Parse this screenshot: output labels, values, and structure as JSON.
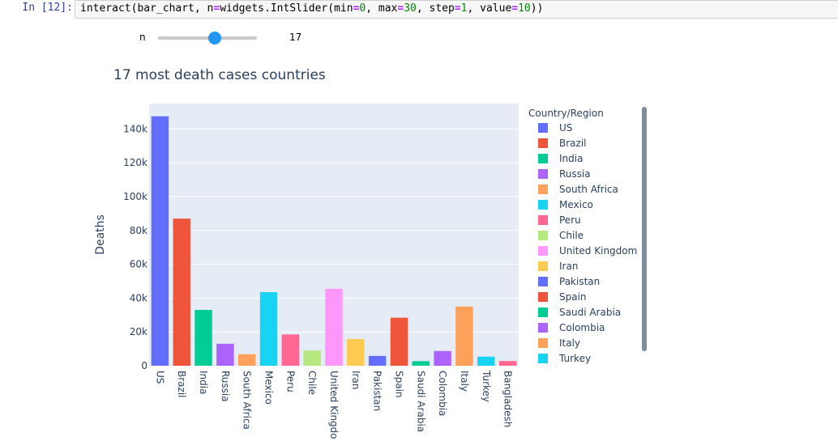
{
  "cell": {
    "prompt": "In [12]:",
    "code_parts": [
      "interact(bar_chart, n",
      "=",
      "widgets.IntSlider(min",
      "=",
      "0",
      ", max",
      "=",
      "30",
      ", step",
      "=",
      "1",
      ", value",
      "=",
      "10",
      "))"
    ]
  },
  "slider": {
    "label": "n",
    "readout": "17",
    "min": 0,
    "max": 30,
    "value": 17,
    "accent": "#2196f3"
  },
  "chart_data": {
    "type": "bar",
    "title": "17 most death cases countries",
    "xlabel": "",
    "ylabel": "Deaths",
    "ylim": [
      0,
      155000
    ],
    "y_ticks": [
      0,
      20000,
      40000,
      60000,
      80000,
      100000,
      120000,
      140000
    ],
    "y_tick_labels": [
      "0",
      "20k",
      "40k",
      "60k",
      "80k",
      "100k",
      "120k",
      "140k"
    ],
    "categories": [
      "US",
      "Brazil",
      "India",
      "Russia",
      "South Africa",
      "Mexico",
      "Peru",
      "Chile",
      "United Kingdom",
      "Iran",
      "Pakistan",
      "Spain",
      "Saudi Arabia",
      "Colombia",
      "Italy",
      "Turkey",
      "Bangladesh"
    ],
    "category_labels": [
      "US",
      "Brazil",
      "India",
      "Russia",
      "South Africa",
      "Mexico",
      "Peru",
      "Chile",
      "United Kingdo",
      "Iran",
      "Pakistan",
      "Spain",
      "Saudi Arabia",
      "Colombia",
      "Italy",
      "Turkey",
      "Bangladesh"
    ],
    "values": [
      147500,
      87000,
      33000,
      13000,
      6800,
      43500,
      18500,
      9000,
      45500,
      15800,
      5800,
      28400,
      2700,
      8700,
      35000,
      5400,
      2800
    ],
    "colors": [
      "#636efa",
      "#ef553b",
      "#00cc96",
      "#ab63fa",
      "#ffa15a",
      "#19d3f3",
      "#ff6692",
      "#b6e880",
      "#ff97ff",
      "#fecb52",
      "#636efa",
      "#ef553b",
      "#00cc96",
      "#ab63fa",
      "#ffa15a",
      "#19d3f3",
      "#ff6692"
    ],
    "legend": {
      "title": "Country/Region",
      "placement": "right",
      "entries": [
        "US",
        "Brazil",
        "India",
        "Russia",
        "South Africa",
        "Mexico",
        "Peru",
        "Chile",
        "United Kingdom",
        "Iran",
        "Pakistan",
        "Spain",
        "Saudi Arabia",
        "Colombia",
        "Italy",
        "Turkey"
      ]
    },
    "grid": true,
    "plot_bg": "#e5ecf6"
  }
}
